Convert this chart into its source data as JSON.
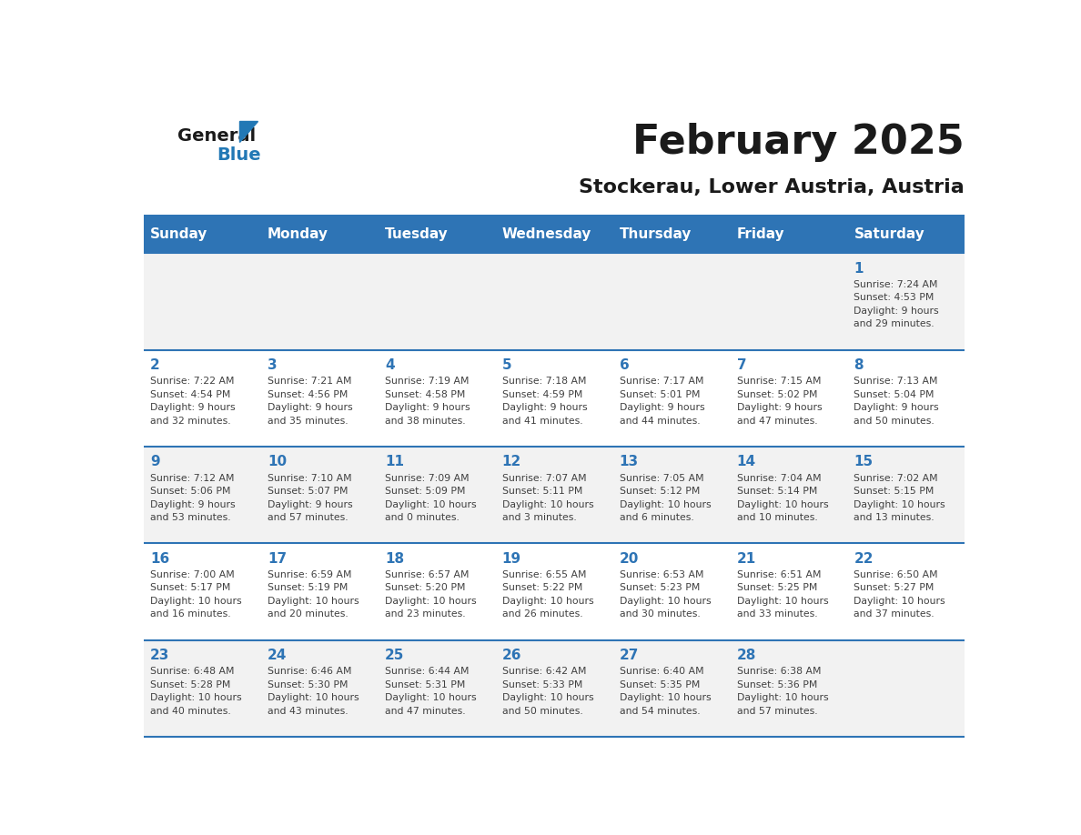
{
  "title": "February 2025",
  "subtitle": "Stockerau, Lower Austria, Austria",
  "days_of_week": [
    "Sunday",
    "Monday",
    "Tuesday",
    "Wednesday",
    "Thursday",
    "Friday",
    "Saturday"
  ],
  "header_bg": "#2E74B5",
  "header_text": "#FFFFFF",
  "row_bg_light": "#FFFFFF",
  "row_bg_gray": "#F2F2F2",
  "separator_color": "#2E74B5",
  "day_number_color": "#2E74B5",
  "cell_text_color": "#404040",
  "title_color": "#1a1a1a",
  "subtitle_color": "#1a1a1a",
  "logo_general_color": "#1a1a1a",
  "logo_blue_color": "#2278B5",
  "weeks": [
    [
      {
        "day": null,
        "info": null
      },
      {
        "day": null,
        "info": null
      },
      {
        "day": null,
        "info": null
      },
      {
        "day": null,
        "info": null
      },
      {
        "day": null,
        "info": null
      },
      {
        "day": null,
        "info": null
      },
      {
        "day": 1,
        "info": "Sunrise: 7:24 AM\nSunset: 4:53 PM\nDaylight: 9 hours\nand 29 minutes."
      }
    ],
    [
      {
        "day": 2,
        "info": "Sunrise: 7:22 AM\nSunset: 4:54 PM\nDaylight: 9 hours\nand 32 minutes."
      },
      {
        "day": 3,
        "info": "Sunrise: 7:21 AM\nSunset: 4:56 PM\nDaylight: 9 hours\nand 35 minutes."
      },
      {
        "day": 4,
        "info": "Sunrise: 7:19 AM\nSunset: 4:58 PM\nDaylight: 9 hours\nand 38 minutes."
      },
      {
        "day": 5,
        "info": "Sunrise: 7:18 AM\nSunset: 4:59 PM\nDaylight: 9 hours\nand 41 minutes."
      },
      {
        "day": 6,
        "info": "Sunrise: 7:17 AM\nSunset: 5:01 PM\nDaylight: 9 hours\nand 44 minutes."
      },
      {
        "day": 7,
        "info": "Sunrise: 7:15 AM\nSunset: 5:02 PM\nDaylight: 9 hours\nand 47 minutes."
      },
      {
        "day": 8,
        "info": "Sunrise: 7:13 AM\nSunset: 5:04 PM\nDaylight: 9 hours\nand 50 minutes."
      }
    ],
    [
      {
        "day": 9,
        "info": "Sunrise: 7:12 AM\nSunset: 5:06 PM\nDaylight: 9 hours\nand 53 minutes."
      },
      {
        "day": 10,
        "info": "Sunrise: 7:10 AM\nSunset: 5:07 PM\nDaylight: 9 hours\nand 57 minutes."
      },
      {
        "day": 11,
        "info": "Sunrise: 7:09 AM\nSunset: 5:09 PM\nDaylight: 10 hours\nand 0 minutes."
      },
      {
        "day": 12,
        "info": "Sunrise: 7:07 AM\nSunset: 5:11 PM\nDaylight: 10 hours\nand 3 minutes."
      },
      {
        "day": 13,
        "info": "Sunrise: 7:05 AM\nSunset: 5:12 PM\nDaylight: 10 hours\nand 6 minutes."
      },
      {
        "day": 14,
        "info": "Sunrise: 7:04 AM\nSunset: 5:14 PM\nDaylight: 10 hours\nand 10 minutes."
      },
      {
        "day": 15,
        "info": "Sunrise: 7:02 AM\nSunset: 5:15 PM\nDaylight: 10 hours\nand 13 minutes."
      }
    ],
    [
      {
        "day": 16,
        "info": "Sunrise: 7:00 AM\nSunset: 5:17 PM\nDaylight: 10 hours\nand 16 minutes."
      },
      {
        "day": 17,
        "info": "Sunrise: 6:59 AM\nSunset: 5:19 PM\nDaylight: 10 hours\nand 20 minutes."
      },
      {
        "day": 18,
        "info": "Sunrise: 6:57 AM\nSunset: 5:20 PM\nDaylight: 10 hours\nand 23 minutes."
      },
      {
        "day": 19,
        "info": "Sunrise: 6:55 AM\nSunset: 5:22 PM\nDaylight: 10 hours\nand 26 minutes."
      },
      {
        "day": 20,
        "info": "Sunrise: 6:53 AM\nSunset: 5:23 PM\nDaylight: 10 hours\nand 30 minutes."
      },
      {
        "day": 21,
        "info": "Sunrise: 6:51 AM\nSunset: 5:25 PM\nDaylight: 10 hours\nand 33 minutes."
      },
      {
        "day": 22,
        "info": "Sunrise: 6:50 AM\nSunset: 5:27 PM\nDaylight: 10 hours\nand 37 minutes."
      }
    ],
    [
      {
        "day": 23,
        "info": "Sunrise: 6:48 AM\nSunset: 5:28 PM\nDaylight: 10 hours\nand 40 minutes."
      },
      {
        "day": 24,
        "info": "Sunrise: 6:46 AM\nSunset: 5:30 PM\nDaylight: 10 hours\nand 43 minutes."
      },
      {
        "day": 25,
        "info": "Sunrise: 6:44 AM\nSunset: 5:31 PM\nDaylight: 10 hours\nand 47 minutes."
      },
      {
        "day": 26,
        "info": "Sunrise: 6:42 AM\nSunset: 5:33 PM\nDaylight: 10 hours\nand 50 minutes."
      },
      {
        "day": 27,
        "info": "Sunrise: 6:40 AM\nSunset: 5:35 PM\nDaylight: 10 hours\nand 54 minutes."
      },
      {
        "day": 28,
        "info": "Sunrise: 6:38 AM\nSunset: 5:36 PM\nDaylight: 10 hours\nand 57 minutes."
      },
      {
        "day": null,
        "info": null
      }
    ]
  ]
}
